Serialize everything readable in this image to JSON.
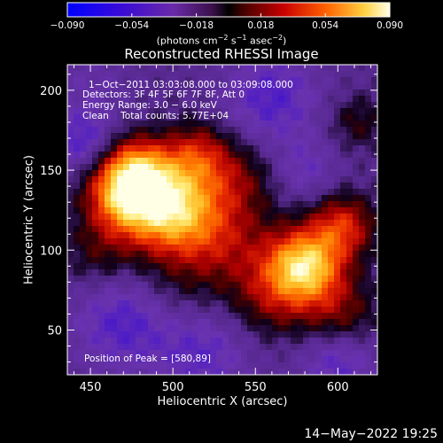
{
  "chart_data": {
    "type": "heatmap",
    "title": "Reconstructed RHESSI Image",
    "xlabel": "Heliocentric X (arcsec)",
    "ylabel": "Heliocentric Y (arcsec)",
    "xlim": [
      436,
      624
    ],
    "ylim": [
      22,
      216
    ],
    "x_ticks": [
      "450",
      "500",
      "550",
      "600"
    ],
    "x_tick_values": [
      450,
      500,
      550,
      600
    ],
    "y_ticks": [
      "50",
      "100",
      "150",
      "200"
    ],
    "y_tick_values": [
      50,
      100,
      150,
      200
    ],
    "colorbar": {
      "ticks": [
        "−0.090",
        "−0.054",
        "−0.018",
        "0.018",
        "0.054",
        "0.090"
      ],
      "tick_values": [
        -0.09,
        -0.054,
        -0.018,
        0.018,
        0.054,
        0.09
      ],
      "range": [
        -0.09,
        0.09
      ],
      "unit_label": "(photons cm",
      "unit_exp1": "−2",
      "unit_mid": " s",
      "unit_exp2": "−1",
      "unit_mid2": " asec",
      "unit_exp3": "−2",
      "unit_end": ")"
    },
    "annotations": {
      "time_range": "1−Oct−2011 03:03:08.000 to 03:09:08.000",
      "detectors": "Detectors: 3F 4F 5F 6F 7F 8F, Att 0",
      "energy": "Energy Range: 3.0 − 6.0 keV",
      "clean": "Clean    Total counts: 5.77E+04",
      "peak": "Position of Peak = [580,89]"
    },
    "peak_position": [
      580,
      89
    ],
    "sources": [
      {
        "x": 498,
        "y": 127,
        "intensity": 0.09,
        "width": 20
      },
      {
        "x": 470,
        "y": 135,
        "intensity": 0.072,
        "width": 16
      },
      {
        "x": 478,
        "y": 152,
        "intensity": 0.05,
        "width": 14
      },
      {
        "x": 515,
        "y": 160,
        "intensity": 0.04,
        "width": 14
      },
      {
        "x": 580,
        "y": 90,
        "intensity": 0.09,
        "width": 16
      },
      {
        "x": 603,
        "y": 115,
        "intensity": 0.05,
        "width": 14
      },
      {
        "x": 530,
        "y": 105,
        "intensity": 0.035,
        "width": 22
      },
      {
        "x": 560,
        "y": 70,
        "intensity": 0.03,
        "width": 18
      },
      {
        "x": 602,
        "y": 60,
        "intensity": 0.03,
        "width": 16
      },
      {
        "x": 455,
        "y": 98,
        "intensity": 0.022,
        "width": 16
      },
      {
        "x": 540,
        "y": 145,
        "intensity": 0.025,
        "width": 16
      },
      {
        "x": 612,
        "y": 180,
        "intensity": 0.022,
        "width": 12
      },
      {
        "x": 500,
        "y": 75,
        "intensity": 0.012,
        "width": 16
      },
      {
        "x": 560,
        "y": 195,
        "intensity": -0.03,
        "width": 20
      },
      {
        "x": 445,
        "y": 168,
        "intensity": -0.03,
        "width": 14
      },
      {
        "x": 470,
        "y": 55,
        "intensity": -0.03,
        "width": 22
      },
      {
        "x": 520,
        "y": 35,
        "intensity": -0.025,
        "width": 20
      },
      {
        "x": 600,
        "y": 30,
        "intensity": -0.028,
        "width": 16
      },
      {
        "x": 580,
        "y": 150,
        "intensity": -0.02,
        "width": 14
      },
      {
        "x": 450,
        "y": 205,
        "intensity": -0.012,
        "width": 16
      }
    ]
  },
  "footer": {
    "date": "14−May−2022 19:25"
  }
}
